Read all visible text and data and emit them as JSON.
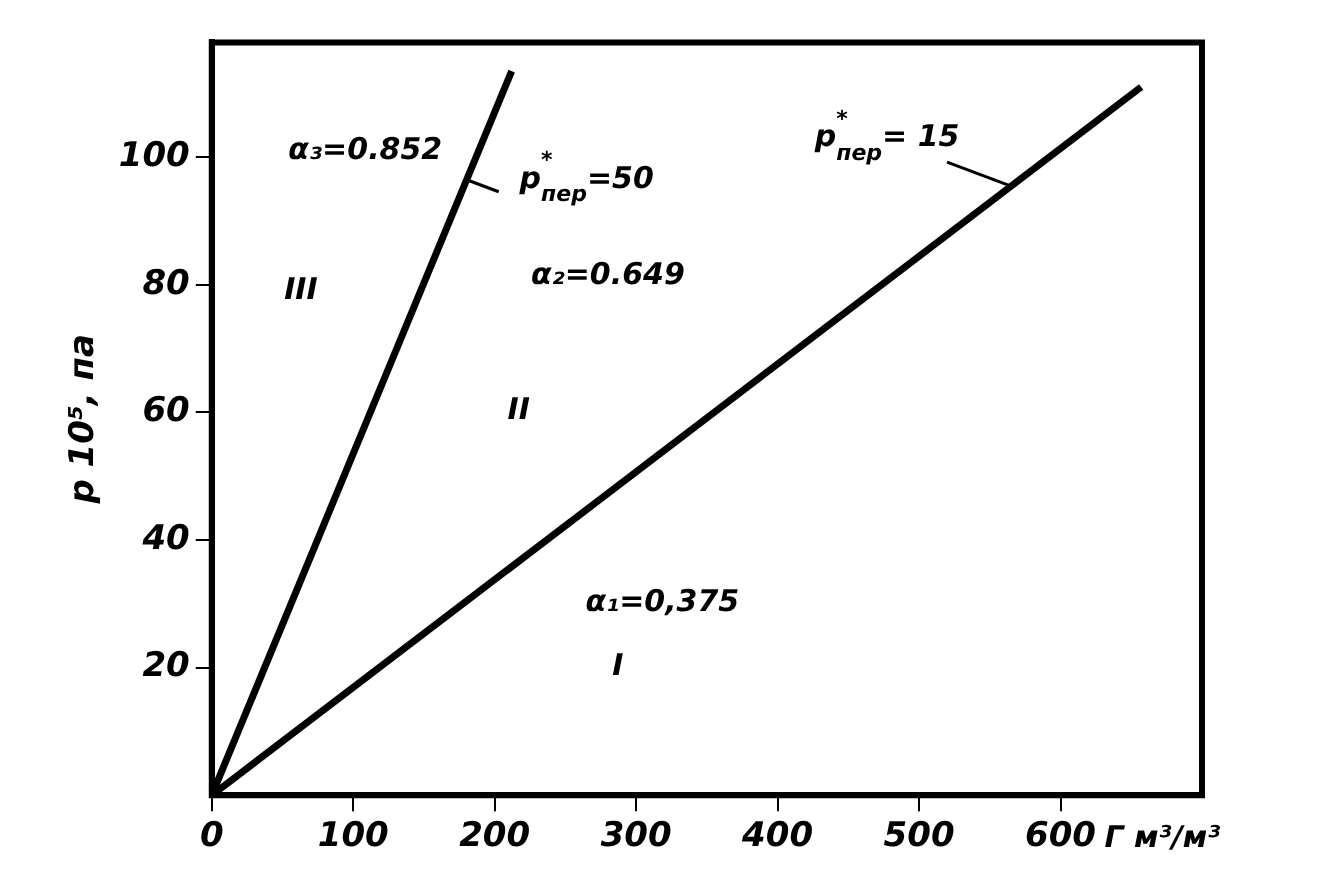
{
  "chart_data": {
    "type": "line",
    "xlabel": "Г м³/м³",
    "ylabel": "p 10⁵, па",
    "xlim": [
      0,
      700
    ],
    "xticks": [
      0,
      100,
      200,
      300,
      400,
      500,
      600
    ],
    "ylim": [
      0,
      118
    ],
    "yticks": [
      20,
      40,
      60,
      80,
      100
    ],
    "grid": false,
    "marker": "none",
    "series": [
      {
        "name": "p$^{*}$$_{пер}$=50",
        "color": "#000000",
        "x": [
          0,
          212
        ],
        "values": [
          0,
          113.5
        ]
      },
      {
        "name": "p$^{*}$$_{пер}$= 15",
        "color": "#000000",
        "x": [
          0,
          657
        ],
        "values": [
          0,
          111
        ]
      }
    ],
    "annotations": [
      "α₃=0.852",
      "III",
      "α₂=0.649",
      "II",
      "α₁=0,375",
      "I"
    ]
  }
}
